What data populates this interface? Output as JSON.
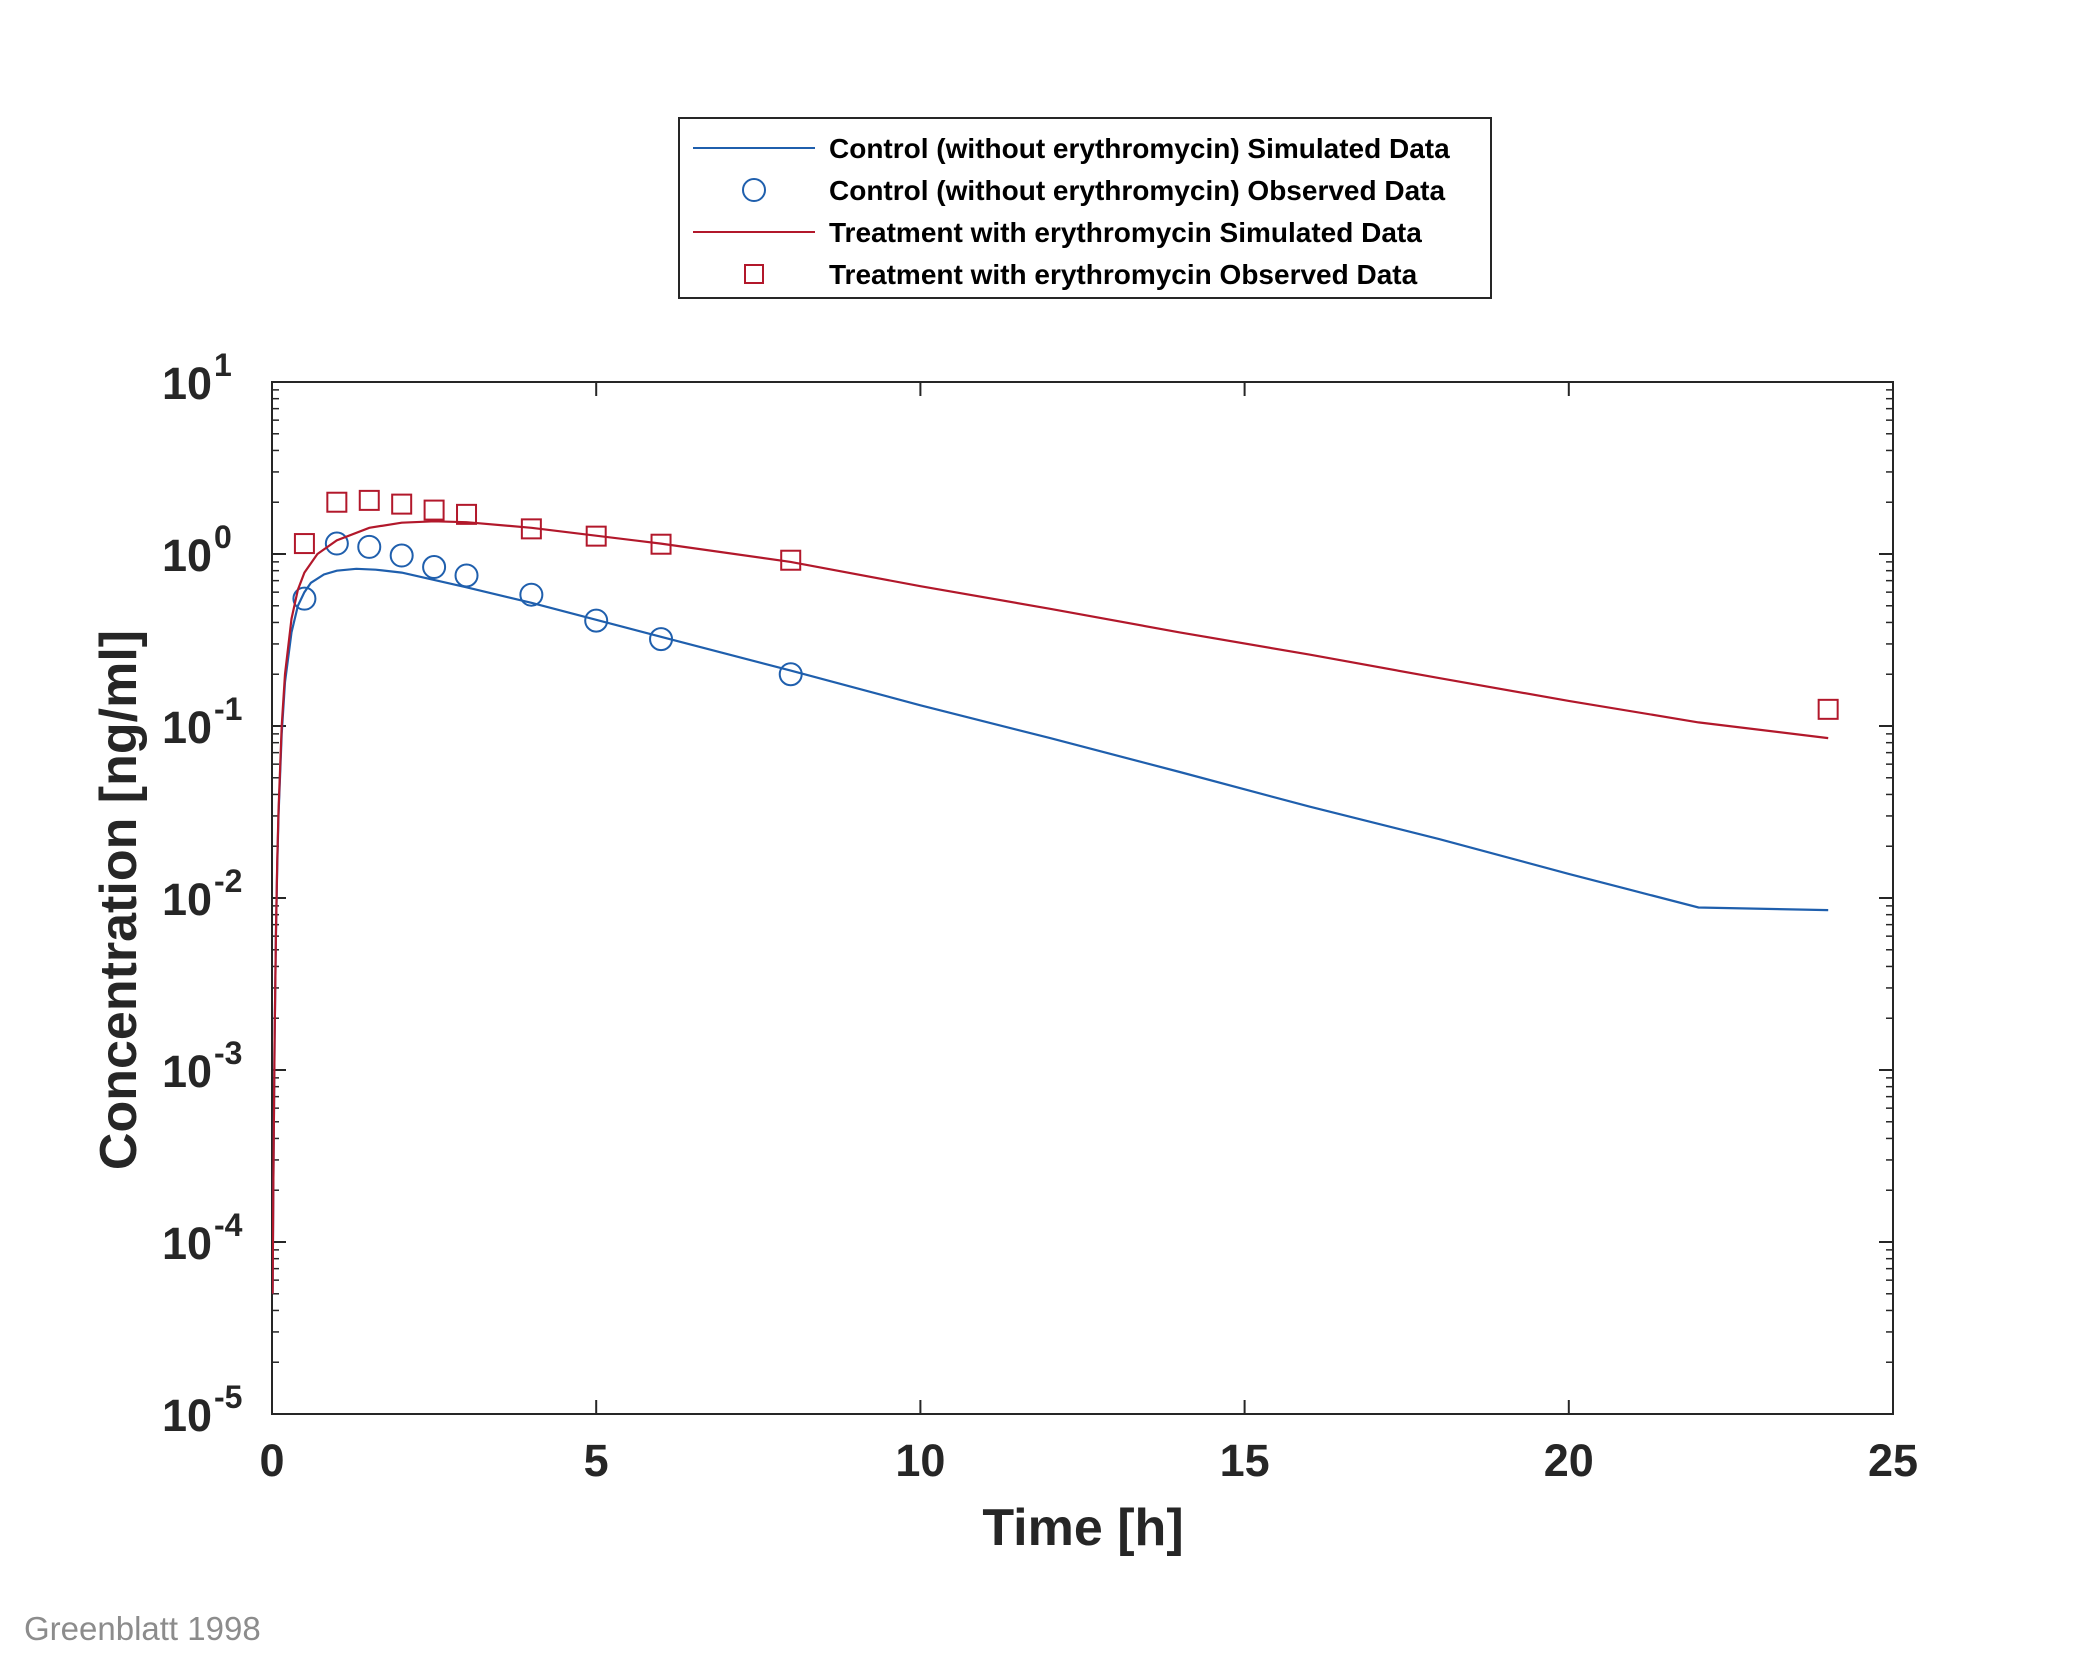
{
  "chart_data": {
    "type": "line",
    "xlabel": "Time [h]",
    "ylabel": "Concentration [ng/ml]",
    "xlim": [
      0,
      25
    ],
    "ylim": [
      1e-05,
      10
    ],
    "yscale": "log",
    "xticks": [
      "0",
      "5",
      "10",
      "15",
      "20",
      "25"
    ],
    "yticks": [
      {
        "base": "10",
        "exp": "1",
        "value": 10
      },
      {
        "base": "10",
        "exp": "0",
        "value": 1
      },
      {
        "base": "10",
        "exp": "-1",
        "value": 0.1
      },
      {
        "base": "10",
        "exp": "-2",
        "value": 0.01
      },
      {
        "base": "10",
        "exp": "-3",
        "value": 0.001
      },
      {
        "base": "10",
        "exp": "-4",
        "value": 0.0001
      },
      {
        "base": "10",
        "exp": "-5",
        "value": 1e-05
      }
    ],
    "grid": false,
    "legend_position": "top-center, above plot",
    "series": [
      {
        "name": "Control (without erythromycin) Simulated Data",
        "kind": "line",
        "color": "#1f5fad",
        "x": [
          0.01,
          0.02,
          0.04,
          0.06,
          0.08,
          0.1,
          0.15,
          0.2,
          0.3,
          0.4,
          0.5,
          0.6,
          0.8,
          1.0,
          1.3,
          1.6,
          2.0,
          3.0,
          4.0,
          6.0,
          8.0,
          10.0,
          12.0,
          14.0,
          16.0,
          18.0,
          20.0,
          22.0,
          24.0
        ],
        "y": [
          5e-05,
          0.0002,
          0.0015,
          0.006,
          0.015,
          0.03,
          0.09,
          0.18,
          0.35,
          0.5,
          0.6,
          0.68,
          0.76,
          0.8,
          0.82,
          0.81,
          0.78,
          0.64,
          0.52,
          0.33,
          0.21,
          0.132,
          0.085,
          0.054,
          0.034,
          0.022,
          0.0138,
          0.0088,
          0.0085
        ]
      },
      {
        "name": "Control (without erythromycin) Observed Data",
        "kind": "marker",
        "marker": "circle",
        "color": "#1f5fad",
        "x": [
          0.5,
          1.0,
          1.5,
          2.0,
          2.5,
          3.0,
          4.0,
          5.0,
          6.0,
          8.0
        ],
        "y": [
          0.55,
          1.15,
          1.1,
          0.98,
          0.84,
          0.75,
          0.58,
          0.41,
          0.32,
          0.2
        ]
      },
      {
        "name": "Treatment with erythromycin Simulated Data",
        "kind": "line",
        "color": "#b2182b",
        "x": [
          0.01,
          0.02,
          0.04,
          0.06,
          0.08,
          0.1,
          0.15,
          0.2,
          0.3,
          0.4,
          0.5,
          0.7,
          1.0,
          1.5,
          2.0,
          2.5,
          3.0,
          4.0,
          6.0,
          8.0,
          10.0,
          12.0,
          14.0,
          16.0,
          18.0,
          20.0,
          22.0,
          24.0
        ],
        "y": [
          5e-05,
          0.0002,
          0.0015,
          0.006,
          0.016,
          0.032,
          0.1,
          0.2,
          0.42,
          0.62,
          0.78,
          1.0,
          1.2,
          1.42,
          1.52,
          1.55,
          1.53,
          1.42,
          1.15,
          0.9,
          0.65,
          0.48,
          0.35,
          0.26,
          0.19,
          0.14,
          0.105,
          0.085
        ]
      },
      {
        "name": "Treatment with erythromycin Observed Data",
        "kind": "marker",
        "marker": "square",
        "color": "#b2182b",
        "x": [
          0.5,
          1.0,
          1.5,
          2.0,
          2.5,
          3.0,
          4.0,
          5.0,
          6.0,
          8.0,
          24.0
        ],
        "y": [
          1.15,
          2.0,
          2.05,
          1.95,
          1.8,
          1.7,
          1.4,
          1.27,
          1.14,
          0.92,
          0.125
        ]
      }
    ]
  },
  "source_note": "Greenblatt 1998"
}
